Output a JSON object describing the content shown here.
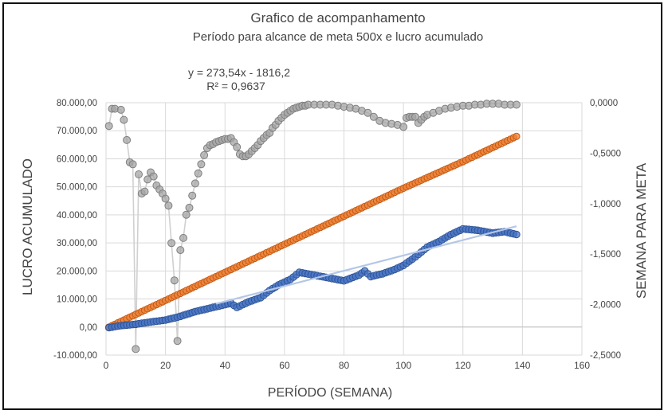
{
  "chart_data": {
    "type": "scatter",
    "title": "Grafico de acompanhamento",
    "subtitle": "Período para alcance de meta 500x e lucro acumulado",
    "xlabel": "PERÍODO (SEMANA)",
    "ylabel": "LUCRO ACUMULADO",
    "y2label": "SEMANA PARA META",
    "xlim": [
      0,
      160
    ],
    "ylim": [
      -10000,
      80000
    ],
    "y2lim": [
      -2.5,
      0
    ],
    "x_ticks": [
      0,
      20,
      40,
      60,
      80,
      100,
      120,
      140,
      160
    ],
    "y_tick_labels": [
      "80.000,00",
      "70.000,00",
      "60.000,00",
      "50.000,00",
      "40.000,00",
      "30.000,00",
      "20.000,00",
      "10.000,00",
      "0,00",
      "-10.000,00"
    ],
    "y2_tick_labels": [
      "0,0000",
      "-0,5000",
      "-1,0000",
      "-1,5000",
      "-2,0000",
      "-2,5000"
    ],
    "grid": true,
    "trendline_equation": "y = 273,54x - 1816,2",
    "trendline_r2": "R² = 0,9637",
    "trendline": {
      "slope": 273.54,
      "intercept": -1816.2,
      "x_range": [
        37,
        138
      ]
    },
    "colors": {
      "lucro": "#4472C4",
      "meta": "#ED7D31",
      "semana": "#A5A5A5",
      "trend": "#B4C7E7"
    },
    "series": [
      {
        "name": "Lucro acumulado",
        "axis": "primary",
        "points": [
          [
            1,
            -200
          ],
          [
            5,
            500
          ],
          [
            10,
            1000
          ],
          [
            15,
            1800
          ],
          [
            20,
            2500
          ],
          [
            24,
            3500
          ],
          [
            27,
            4500
          ],
          [
            30,
            5500
          ],
          [
            34,
            6500
          ],
          [
            38,
            7500
          ],
          [
            42,
            8500
          ],
          [
            44,
            7000
          ],
          [
            48,
            9000
          ],
          [
            52,
            10500
          ],
          [
            55,
            13000
          ],
          [
            58,
            15000
          ],
          [
            62,
            17000
          ],
          [
            65,
            19500
          ],
          [
            70,
            18500
          ],
          [
            75,
            17500
          ],
          [
            80,
            16500
          ],
          [
            85,
            18500
          ],
          [
            87,
            20000
          ],
          [
            89,
            18000
          ],
          [
            93,
            19000
          ],
          [
            97,
            20500
          ],
          [
            100,
            22000
          ],
          [
            104,
            25000
          ],
          [
            108,
            28500
          ],
          [
            112,
            30500
          ],
          [
            116,
            33000
          ],
          [
            120,
            35000
          ],
          [
            125,
            34500
          ],
          [
            130,
            33500
          ],
          [
            134,
            34000
          ],
          [
            138,
            33000
          ]
        ]
      },
      {
        "name": "Meta",
        "axis": "primary",
        "points": [
          [
            1,
            0
          ],
          [
            20,
            9500
          ],
          [
            40,
            19500
          ],
          [
            60,
            29500
          ],
          [
            80,
            39500
          ],
          [
            100,
            49500
          ],
          [
            120,
            59000
          ],
          [
            138,
            68000
          ]
        ]
      },
      {
        "name": "Semana para meta",
        "axis": "secondary",
        "points": [
          [
            1,
            -0.23
          ],
          [
            2,
            -0.06
          ],
          [
            3,
            -0.06
          ],
          [
            5,
            -0.07
          ],
          [
            6,
            -0.17
          ],
          [
            7,
            -0.37
          ],
          [
            8,
            -0.59
          ],
          [
            9,
            -0.61
          ],
          [
            10,
            -2.44
          ],
          [
            11,
            -0.71
          ],
          [
            12,
            -0.9
          ],
          [
            13,
            -0.88
          ],
          [
            14,
            -0.76
          ],
          [
            15,
            -0.69
          ],
          [
            16,
            -0.73
          ],
          [
            17,
            -0.82
          ],
          [
            18,
            -0.86
          ],
          [
            19,
            -0.9
          ],
          [
            20,
            -0.95
          ],
          [
            21,
            -1.02
          ],
          [
            22,
            -1.39
          ],
          [
            23,
            -1.76
          ],
          [
            24,
            -2.36
          ],
          [
            25,
            -1.46
          ],
          [
            26,
            -1.34
          ],
          [
            27,
            -1.11
          ],
          [
            28,
            -1.04
          ],
          [
            29,
            -0.92
          ],
          [
            30,
            -0.8
          ],
          [
            31,
            -0.7
          ],
          [
            32,
            -0.61
          ],
          [
            33,
            -0.52
          ],
          [
            34,
            -0.45
          ],
          [
            35,
            -0.42
          ],
          [
            36,
            -0.41
          ],
          [
            37,
            -0.39
          ],
          [
            38,
            -0.38
          ],
          [
            39,
            -0.37
          ],
          [
            40,
            -0.36
          ],
          [
            41,
            -0.36
          ],
          [
            42,
            -0.35
          ],
          [
            43,
            -0.39
          ],
          [
            44,
            -0.44
          ],
          [
            45,
            -0.51
          ],
          [
            46,
            -0.53
          ],
          [
            47,
            -0.53
          ],
          [
            48,
            -0.51
          ],
          [
            49,
            -0.48
          ],
          [
            50,
            -0.45
          ],
          [
            51,
            -0.42
          ],
          [
            52,
            -0.38
          ],
          [
            53,
            -0.35
          ],
          [
            54,
            -0.32
          ],
          [
            55,
            -0.3
          ],
          [
            56,
            -0.25
          ],
          [
            57,
            -0.22
          ],
          [
            58,
            -0.18
          ],
          [
            59,
            -0.15
          ],
          [
            60,
            -0.12
          ],
          [
            61,
            -0.1
          ],
          [
            62,
            -0.08
          ],
          [
            63,
            -0.06
          ],
          [
            64,
            -0.05
          ],
          [
            65,
            -0.04
          ],
          [
            66,
            -0.03
          ],
          [
            67,
            -0.03
          ],
          [
            68,
            -0.02
          ],
          [
            70,
            -0.02
          ],
          [
            72,
            -0.02
          ],
          [
            74,
            -0.02
          ],
          [
            76,
            -0.02
          ],
          [
            78,
            -0.03
          ],
          [
            80,
            -0.04
          ],
          [
            82,
            -0.05
          ],
          [
            84,
            -0.06
          ],
          [
            86,
            -0.08
          ],
          [
            88,
            -0.1
          ],
          [
            90,
            -0.14
          ],
          [
            92,
            -0.18
          ],
          [
            94,
            -0.2
          ],
          [
            96,
            -0.21
          ],
          [
            98,
            -0.22
          ],
          [
            100,
            -0.24
          ],
          [
            101,
            -0.15
          ],
          [
            102,
            -0.14
          ],
          [
            103,
            -0.14
          ],
          [
            104,
            -0.14
          ],
          [
            105,
            -0.2
          ],
          [
            106,
            -0.17
          ],
          [
            107,
            -0.14
          ],
          [
            108,
            -0.12
          ],
          [
            110,
            -0.1
          ],
          [
            112,
            -0.08
          ],
          [
            114,
            -0.06
          ],
          [
            116,
            -0.05
          ],
          [
            118,
            -0.04
          ],
          [
            120,
            -0.03
          ],
          [
            122,
            -0.03
          ],
          [
            124,
            -0.02
          ],
          [
            126,
            -0.02
          ],
          [
            128,
            -0.01
          ],
          [
            130,
            -0.01
          ],
          [
            132,
            -0.01
          ],
          [
            134,
            -0.02
          ],
          [
            136,
            -0.02
          ],
          [
            138,
            -0.02
          ]
        ]
      }
    ]
  }
}
